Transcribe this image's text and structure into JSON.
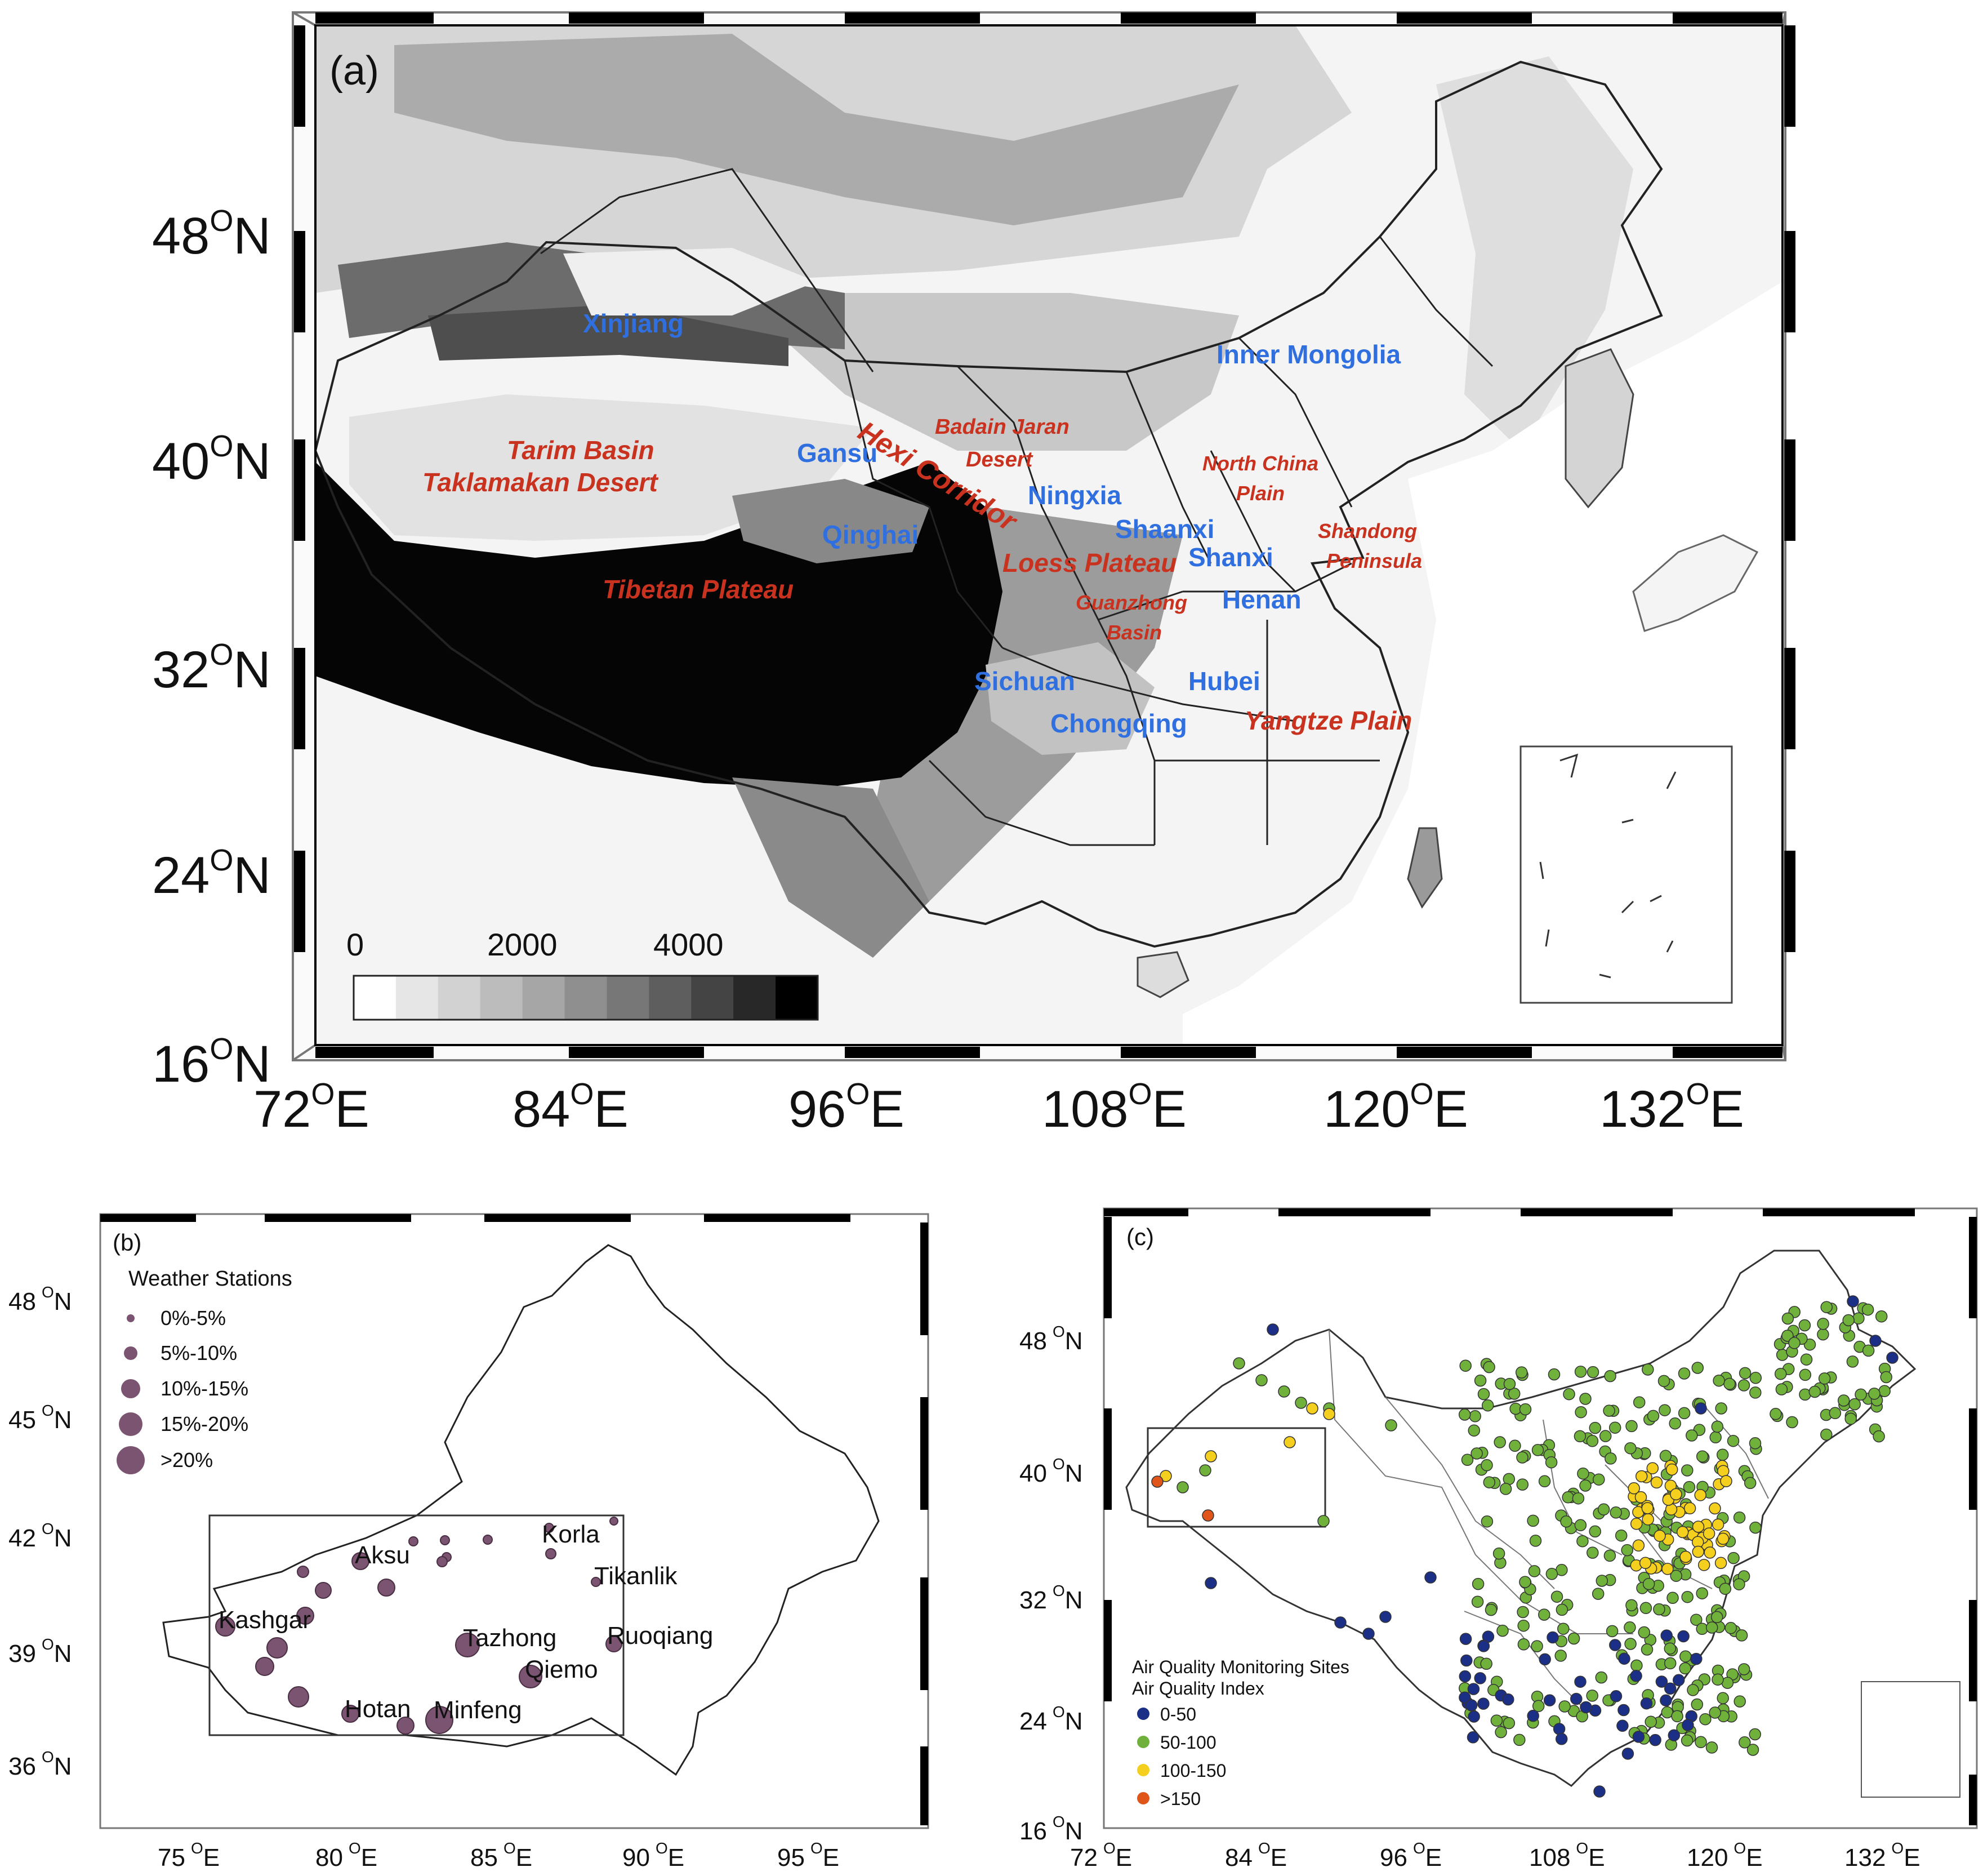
{
  "panel_a": {
    "label": "(a)",
    "lat_ticks": [
      "48",
      "40",
      "32",
      "24",
      "16"
    ],
    "lon_ticks": [
      "72",
      "84",
      "96",
      "108",
      "120",
      "132"
    ],
    "lat_suffix": "N",
    "lon_suffix": "E",
    "deg": "O",
    "colorbar_labels": [
      "0",
      "2000",
      "4000"
    ],
    "colorbar_colors": [
      "#ffffff",
      "#e6e6e6",
      "#d2d2d2",
      "#bcbcbc",
      "#a6a6a6",
      "#8f8f8f",
      "#777777",
      "#5e5e5e",
      "#444444",
      "#282828",
      "#000000"
    ],
    "provinces": [
      "Xinjiang",
      "Inner Mongolia",
      "Gansu",
      "Ningxia",
      "Qinghai",
      "Shaanxi",
      "Shanxi",
      "Henan",
      "Sichuan",
      "Hubei",
      "Chongqing"
    ],
    "regions": {
      "tarim": "Tarim Basin",
      "taklamakan": "Taklamakan Desert",
      "tibetan": "Tibetan Plateau",
      "hexi": "Hexi Corridor",
      "badain_1": "Badain Jaran",
      "badain_2": "Desert",
      "loess": "Loess Plateau",
      "north_china_1": "North China",
      "north_china_2": "Plain",
      "shandong_1": "Shandong",
      "shandong_2": "Peninsula",
      "guanzhong_1": "Guanzhong",
      "guanzhong_2": "Basin",
      "yangtze": "Yangtze Plain"
    }
  },
  "panel_b": {
    "label": "(b)",
    "legend_title": "Weather Stations",
    "legend_items": [
      "0%-5%",
      "5%-10%",
      "10%-15%",
      "15%-20%",
      ">20%"
    ],
    "lat_ticks": [
      "48",
      "45",
      "42",
      "39",
      "36"
    ],
    "lon_ticks": [
      "75",
      "80",
      "85",
      "90",
      "95"
    ],
    "station_names": [
      "Korla",
      "Aksu",
      "Tikanlik",
      "Kashgar",
      "Tazhong",
      "Ruoqiang",
      "Qiemo",
      "Hotan",
      "Minfeng"
    ],
    "marker_color": "#7a5470"
  },
  "panel_c": {
    "label": "(c)",
    "legend_title_1": "Air Quality Monitoring Sites",
    "legend_title_2": "Air Quality Index",
    "legend_items": [
      "0-50",
      "50-100",
      "100-150",
      ">150"
    ],
    "legend_colors": [
      "#1c2f86",
      "#6fb13a",
      "#f5cf1d",
      "#e0561a"
    ],
    "lat_ticks": [
      "48",
      "40",
      "32",
      "24",
      "16"
    ],
    "lon_ticks": [
      "72",
      "84",
      "96",
      "108",
      "120",
      "132"
    ]
  }
}
